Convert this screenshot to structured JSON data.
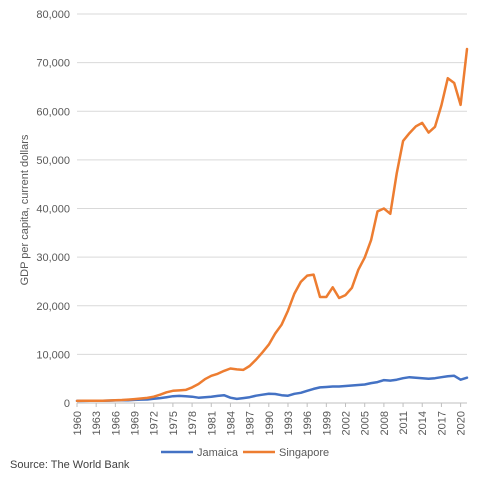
{
  "source_text": "Source: The World Bank",
  "colors": {
    "jamaica": "#4472C4",
    "singapore": "#ED7D31",
    "grid": "#d9d9d9",
    "axis": "#bfbfbf"
  },
  "chart_data": {
    "type": "line",
    "title": "",
    "ylabel": "GDP per capita, current dollars",
    "xlabel": "",
    "ylim": [
      0,
      80000
    ],
    "xlim": [
      1960,
      2021
    ],
    "grid": true,
    "legend_position": "bottom",
    "y_ticks": [
      0,
      10000,
      20000,
      30000,
      40000,
      50000,
      60000,
      70000,
      80000
    ],
    "y_tick_labels": [
      "0",
      "10,000",
      "20,000",
      "30,000",
      "40,000",
      "50,000",
      "60,000",
      "70,000",
      "80,000"
    ],
    "x_tick_labels": [
      "1960",
      "1963",
      "1966",
      "1969",
      "1972",
      "1975",
      "1978",
      "1981",
      "1984",
      "1987",
      "1990",
      "1993",
      "1996",
      "1999",
      "2002",
      "2005",
      "2008",
      "2011",
      "2014",
      "2017",
      "2020"
    ],
    "x": [
      1960,
      1961,
      1962,
      1963,
      1964,
      1965,
      1966,
      1967,
      1968,
      1969,
      1970,
      1971,
      1972,
      1973,
      1974,
      1975,
      1976,
      1977,
      1978,
      1979,
      1980,
      1981,
      1982,
      1983,
      1984,
      1985,
      1986,
      1987,
      1988,
      1989,
      1990,
      1991,
      1992,
      1993,
      1994,
      1995,
      1996,
      1997,
      1998,
      1999,
      2000,
      2001,
      2002,
      2003,
      2004,
      2005,
      2006,
      2007,
      2008,
      2009,
      2010,
      2011,
      2012,
      2013,
      2014,
      2015,
      2016,
      2017,
      2018,
      2019,
      2020,
      2021
    ],
    "series": [
      {
        "name": "Jamaica",
        "values": [
          430,
          440,
          450,
          460,
          480,
          500,
          540,
          560,
          580,
          640,
          690,
          720,
          860,
          1000,
          1200,
          1400,
          1450,
          1400,
          1300,
          1100,
          1200,
          1300,
          1450,
          1600,
          1100,
          850,
          1000,
          1200,
          1500,
          1700,
          1900,
          1850,
          1600,
          1500,
          1900,
          2100,
          2500,
          2900,
          3200,
          3300,
          3400,
          3400,
          3500,
          3600,
          3700,
          3800,
          4100,
          4300,
          4700,
          4600,
          4800,
          5100,
          5300,
          5200,
          5100,
          5000,
          5100,
          5300,
          5500,
          5600,
          4800,
          5200
        ]
      },
      {
        "name": "Singapore",
        "values": [
          430,
          450,
          460,
          480,
          470,
          520,
          570,
          620,
          700,
          810,
          920,
          1050,
          1300,
          1700,
          2200,
          2500,
          2600,
          2700,
          3200,
          3900,
          4900,
          5600,
          6000,
          6600,
          7100,
          6900,
          6800,
          7600,
          8900,
          10400,
          12000,
          14300,
          16100,
          19000,
          22500,
          24900,
          26200,
          26400,
          21800,
          21800,
          23800,
          21600,
          22200,
          23700,
          27400,
          29900,
          33500,
          39400,
          40000,
          38900,
          47200,
          53900,
          55500,
          56900,
          57600,
          55600,
          56800,
          61200,
          66800,
          65800,
          61300,
          72800
        ]
      }
    ]
  }
}
